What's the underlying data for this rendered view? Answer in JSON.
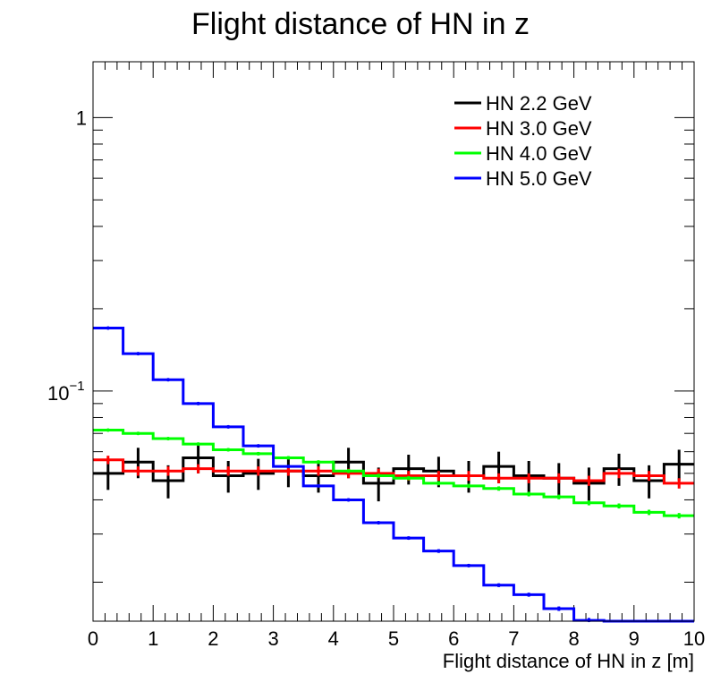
{
  "chart_data": {
    "type": "line",
    "title": "Flight distance of HN in z",
    "xlabel": "Flight distance of HN in z [m]",
    "ylabel": "",
    "xlim": [
      0,
      10
    ],
    "ylim": [
      0.0144,
      1.6
    ],
    "ylog": true,
    "grid": false,
    "legend_position": "top-right",
    "x_ticks": [
      "0",
      "1",
      "2",
      "3",
      "4",
      "5",
      "6",
      "7",
      "8",
      "9",
      "10"
    ],
    "y_ticks": [
      {
        "value": 1,
        "label": "1"
      },
      {
        "value": 0.1,
        "base": "10",
        "exp": "−1"
      }
    ],
    "bin_edges": [
      0,
      0.5,
      1,
      1.5,
      2,
      2.5,
      3,
      3.5,
      4,
      4.5,
      5,
      5.5,
      6,
      6.5,
      7,
      7.5,
      8,
      8.5,
      9,
      9.5,
      10
    ],
    "series": [
      {
        "name": "HN 2.2 GeV",
        "color": "#000000",
        "values": [
          0.05,
          0.055,
          0.047,
          0.057,
          0.049,
          0.05,
          0.051,
          0.049,
          0.055,
          0.046,
          0.052,
          0.051,
          0.049,
          0.053,
          0.049,
          0.048,
          0.046,
          0.052,
          0.047,
          0.054
        ],
        "errors": [
          0.0065,
          0.007,
          0.0065,
          0.007,
          0.0065,
          0.0065,
          0.0065,
          0.0065,
          0.007,
          0.0065,
          0.0065,
          0.0065,
          0.0065,
          0.007,
          0.0065,
          0.0065,
          0.0065,
          0.007,
          0.0065,
          0.007
        ]
      },
      {
        "name": "HN 3.0 GeV",
        "color": "#ff0000",
        "values": [
          0.056,
          0.051,
          0.051,
          0.052,
          0.051,
          0.051,
          0.051,
          0.051,
          0.05,
          0.05,
          0.049,
          0.049,
          0.049,
          0.048,
          0.048,
          0.048,
          0.047,
          0.05,
          0.049,
          0.046
        ],
        "errors": [
          0.002,
          0.002,
          0.002,
          0.002,
          0.002,
          0.002,
          0.002,
          0.002,
          0.002,
          0.002,
          0.002,
          0.002,
          0.002,
          0.002,
          0.002,
          0.002,
          0.002,
          0.002,
          0.002,
          0.002
        ]
      },
      {
        "name": "HN 4.0 GeV",
        "color": "#00ff00",
        "values": [
          0.072,
          0.07,
          0.067,
          0.064,
          0.061,
          0.059,
          0.057,
          0.055,
          0.051,
          0.049,
          0.048,
          0.046,
          0.045,
          0.044,
          0.042,
          0.041,
          0.039,
          0.038,
          0.036,
          0.035
        ],
        "errors": [
          0.0008,
          0.0008,
          0.0008,
          0.0008,
          0.0008,
          0.0008,
          0.0008,
          0.0008,
          0.0008,
          0.0008,
          0.0008,
          0.0008,
          0.0008,
          0.0008,
          0.0008,
          0.0008,
          0.0008,
          0.0008,
          0.0008,
          0.0008
        ]
      },
      {
        "name": "HN 5.0 GeV",
        "color": "#0000ff",
        "values": [
          0.17,
          0.137,
          0.11,
          0.09,
          0.074,
          0.063,
          0.053,
          0.045,
          0.04,
          0.033,
          0.029,
          0.026,
          0.023,
          0.0195,
          0.018,
          0.016,
          0.0145,
          0.0138,
          0.0128,
          0.0118
        ],
        "errors": [
          0.0012,
          0.001,
          0.001,
          0.0009,
          0.0008,
          0.0007,
          0.0006,
          0.0005,
          0.0005,
          0.0004,
          0.0004,
          0.0004,
          0.0003,
          0.0003,
          0.0003,
          0.0003,
          0.0003,
          0.0003,
          0.0002,
          0.0002
        ]
      }
    ]
  }
}
